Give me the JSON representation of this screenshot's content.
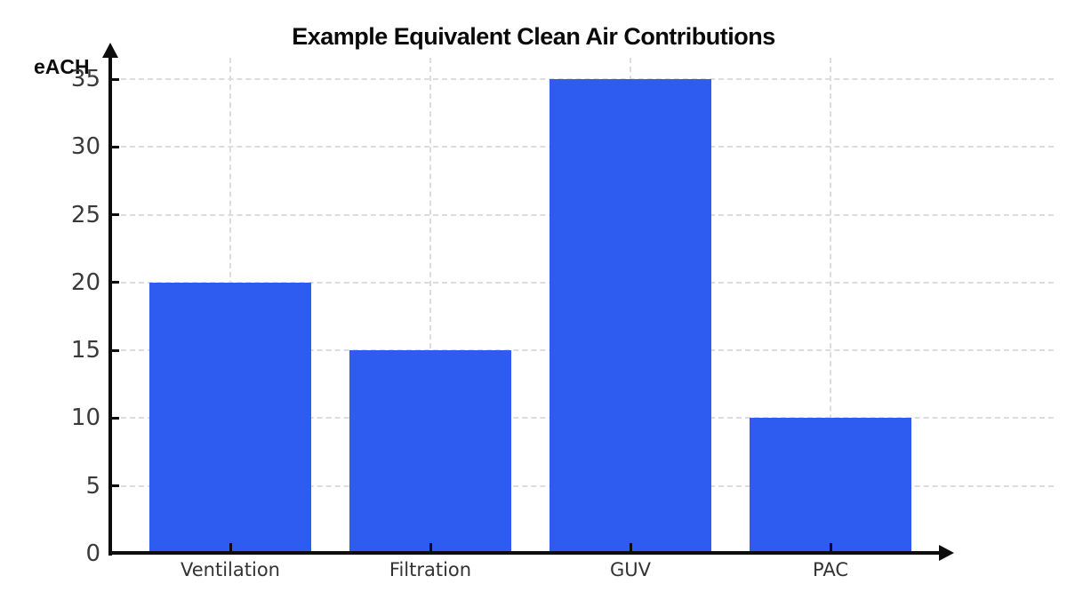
{
  "chart_data": {
    "type": "bar",
    "title": "Example Equivalent Clean Air Contributions",
    "ylabel": "eACH",
    "xlabel": "",
    "categories": [
      "Ventilation",
      "Filtration",
      "GUV",
      "PAC"
    ],
    "values": [
      20,
      15,
      35,
      10
    ],
    "yticks": [
      0,
      5,
      10,
      15,
      20,
      25,
      30,
      35
    ],
    "ylim": [
      0,
      37
    ],
    "grid": true,
    "grid_style": "dashed",
    "legend_position": "none",
    "colors": {
      "bar": "#2e5cf0",
      "axis": "#0d0d0d",
      "grid": "#dcdcdc",
      "y_tick_label": "#3a3a3a",
      "category_label": "#333333",
      "title": "#0a0a0a",
      "background": "#ffffff"
    }
  }
}
